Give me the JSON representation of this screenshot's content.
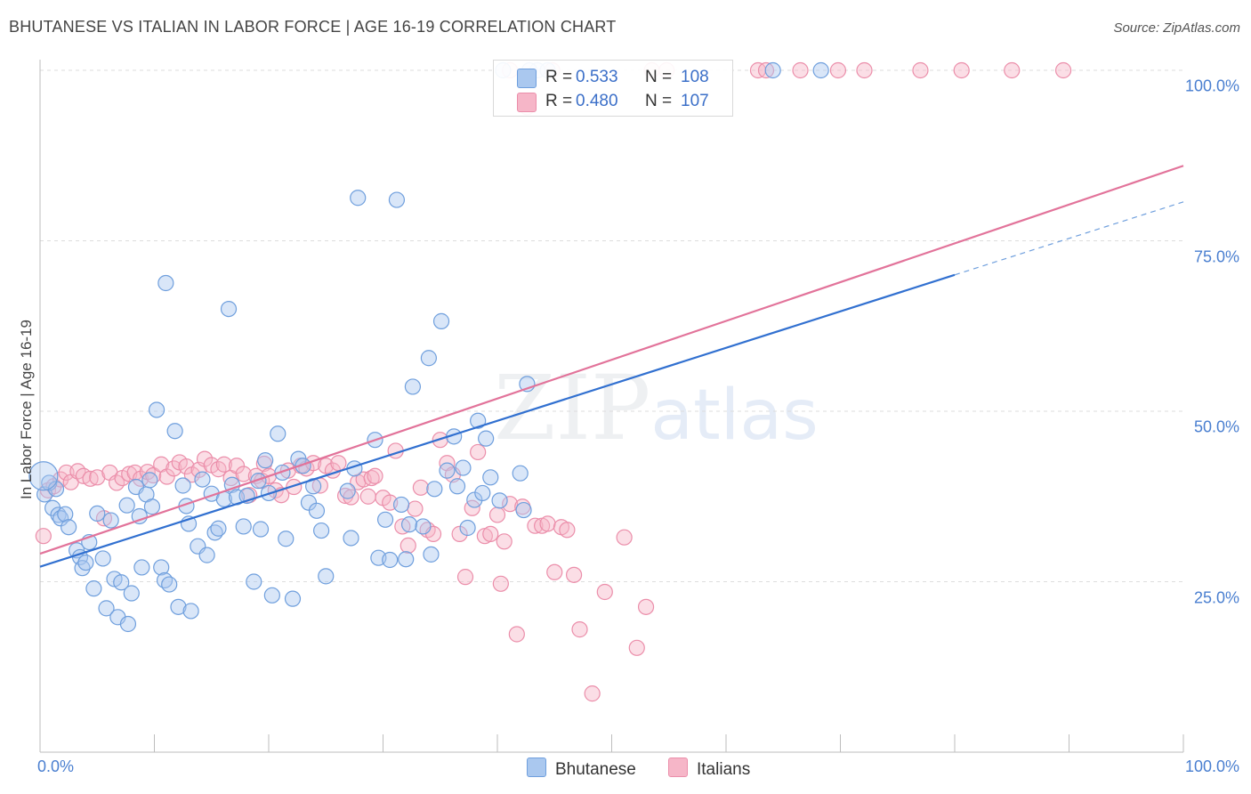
{
  "header": {
    "title": "BHUTANESE VS ITALIAN IN LABOR FORCE | AGE 16-19 CORRELATION CHART",
    "source": "Source: ZipAtlas.com"
  },
  "watermark": {
    "zip": "ZIP",
    "atlas": "atlas"
  },
  "colors": {
    "blue_fill": "#aac8ef",
    "blue_stroke": "#6f9fdd",
    "blue_line": "#3170d0",
    "pink_fill": "#f6b6c8",
    "pink_stroke": "#eb8eaa",
    "pink_line": "#e2739a",
    "tick_text": "#4a7fd0"
  },
  "stats": [
    {
      "r_label": "R =",
      "r_value": "0.533",
      "n_label": "N =",
      "n_value": "108"
    },
    {
      "r_label": "R =",
      "r_value": "0.480",
      "n_label": "N =",
      "n_value": "107"
    }
  ],
  "legend": [
    {
      "label": "Bhutanese"
    },
    {
      "label": "Italians"
    }
  ],
  "chart_data": {
    "type": "scatter",
    "ylabel": "In Labor Force | Age 16-19",
    "xlim": [
      0,
      100
    ],
    "ylim": [
      0,
      100
    ],
    "grid": true,
    "legend_position": "bottom-center",
    "x_tick_labels": [
      "0.0%",
      "100.0%"
    ],
    "y_tick_labels": [
      "25.0%",
      "50.0%",
      "75.0%",
      "100.0%"
    ],
    "y_ticks": [
      25,
      50,
      75,
      100
    ],
    "series": [
      {
        "name": "Bhutanese",
        "color": "#aac8ef",
        "trend": {
          "x0": 0,
          "y0": 27.2,
          "x1": 80,
          "y1": 70,
          "dash_to": 100,
          "dash_y": 80.7
        },
        "points": [
          [
            0.4,
            37.8
          ],
          [
            0.8,
            39.5
          ],
          [
            1.1,
            35.8
          ],
          [
            1.4,
            38.6
          ],
          [
            1.6,
            34.8
          ],
          [
            1.8,
            34.3
          ],
          [
            2.2,
            34.9
          ],
          [
            2.5,
            33.0
          ],
          [
            3.2,
            29.6
          ],
          [
            3.5,
            28.6
          ],
          [
            3.7,
            27.0
          ],
          [
            4.0,
            27.8
          ],
          [
            4.3,
            30.8
          ],
          [
            4.7,
            24.0
          ],
          [
            5.0,
            35.0
          ],
          [
            5.5,
            28.4
          ],
          [
            5.8,
            21.1
          ],
          [
            6.2,
            34.0
          ],
          [
            6.5,
            25.4
          ],
          [
            6.8,
            19.8
          ],
          [
            7.1,
            24.9
          ],
          [
            7.6,
            36.2
          ],
          [
            7.7,
            18.8
          ],
          [
            8.0,
            23.3
          ],
          [
            8.4,
            38.9
          ],
          [
            8.7,
            34.6
          ],
          [
            8.9,
            27.1
          ],
          [
            9.3,
            37.8
          ],
          [
            9.6,
            39.9
          ],
          [
            9.8,
            36.0
          ],
          [
            10.2,
            50.2
          ],
          [
            10.6,
            27.1
          ],
          [
            10.9,
            25.2
          ],
          [
            11.0,
            68.8
          ],
          [
            11.3,
            24.6
          ],
          [
            11.8,
            47.1
          ],
          [
            12.1,
            21.3
          ],
          [
            12.5,
            39.1
          ],
          [
            12.8,
            36.1
          ],
          [
            13.0,
            33.5
          ],
          [
            13.2,
            20.7
          ],
          [
            13.8,
            30.2
          ],
          [
            14.2,
            40.0
          ],
          [
            14.6,
            28.9
          ],
          [
            15.0,
            37.9
          ],
          [
            15.3,
            32.2
          ],
          [
            15.6,
            32.8
          ],
          [
            16.1,
            37.1
          ],
          [
            16.5,
            65.0
          ],
          [
            16.8,
            39.2
          ],
          [
            17.2,
            37.4
          ],
          [
            17.8,
            33.1
          ],
          [
            18.1,
            37.6
          ],
          [
            18.7,
            25.0
          ],
          [
            19.1,
            39.8
          ],
          [
            19.3,
            32.7
          ],
          [
            19.7,
            42.8
          ],
          [
            20.0,
            38.0
          ],
          [
            20.3,
            23.0
          ],
          [
            20.8,
            46.7
          ],
          [
            21.2,
            41.0
          ],
          [
            21.5,
            31.3
          ],
          [
            22.1,
            22.5
          ],
          [
            22.6,
            43.0
          ],
          [
            23.0,
            42.0
          ],
          [
            23.5,
            36.6
          ],
          [
            23.9,
            39.0
          ],
          [
            24.2,
            35.4
          ],
          [
            24.6,
            32.5
          ],
          [
            25.0,
            25.8
          ],
          [
            26.9,
            38.3
          ],
          [
            27.2,
            31.4
          ],
          [
            27.5,
            41.6
          ],
          [
            27.8,
            81.3
          ],
          [
            29.3,
            45.8
          ],
          [
            29.6,
            28.5
          ],
          [
            30.2,
            34.1
          ],
          [
            30.6,
            28.2
          ],
          [
            31.2,
            81.0
          ],
          [
            31.6,
            36.3
          ],
          [
            32.0,
            28.3
          ],
          [
            32.3,
            33.4
          ],
          [
            32.6,
            53.6
          ],
          [
            33.5,
            33.1
          ],
          [
            34.0,
            57.8
          ],
          [
            34.2,
            29.0
          ],
          [
            34.5,
            38.6
          ],
          [
            35.1,
            63.2
          ],
          [
            35.6,
            41.3
          ],
          [
            36.2,
            46.3
          ],
          [
            36.5,
            39.0
          ],
          [
            37.0,
            41.7
          ],
          [
            37.4,
            32.9
          ],
          [
            38.0,
            37.0
          ],
          [
            38.3,
            48.6
          ],
          [
            38.7,
            38.0
          ],
          [
            39.0,
            46.0
          ],
          [
            39.4,
            40.3
          ],
          [
            40.2,
            36.9
          ],
          [
            42.0,
            40.9
          ],
          [
            42.3,
            35.5
          ],
          [
            42.6,
            54.0
          ],
          [
            64.1,
            100.0
          ],
          [
            68.3,
            100.0
          ],
          [
            43.5,
            100.0
          ],
          [
            42.8,
            100.0
          ],
          [
            40.5,
            100.0
          ],
          [
            44.4,
            100.0
          ]
        ]
      },
      {
        "name": "Italians",
        "color": "#f6b6c8",
        "trend": {
          "x0": 0,
          "y0": 29.1,
          "x1": 100,
          "y1": 86.0
        },
        "points": [
          [
            0.3,
            31.7
          ],
          [
            0.7,
            38.4
          ],
          [
            1.2,
            39.0
          ],
          [
            1.8,
            40.0
          ],
          [
            2.3,
            41.0
          ],
          [
            2.7,
            39.6
          ],
          [
            3.3,
            41.2
          ],
          [
            3.8,
            40.5
          ],
          [
            4.4,
            40.1
          ],
          [
            5.0,
            40.3
          ],
          [
            5.6,
            34.3
          ],
          [
            6.1,
            41.0
          ],
          [
            6.7,
            39.5
          ],
          [
            7.2,
            40.2
          ],
          [
            7.8,
            40.8
          ],
          [
            8.3,
            41.0
          ],
          [
            8.8,
            40.1
          ],
          [
            9.4,
            41.1
          ],
          [
            9.9,
            40.6
          ],
          [
            10.6,
            42.2
          ],
          [
            11.1,
            40.4
          ],
          [
            11.7,
            41.6
          ],
          [
            12.2,
            42.5
          ],
          [
            12.8,
            41.9
          ],
          [
            13.3,
            40.7
          ],
          [
            13.9,
            41.4
          ],
          [
            14.4,
            43.0
          ],
          [
            15.0,
            42.1
          ],
          [
            15.6,
            41.5
          ],
          [
            16.1,
            42.2
          ],
          [
            16.7,
            40.2
          ],
          [
            17.2,
            42.0
          ],
          [
            17.8,
            40.8
          ],
          [
            18.3,
            37.7
          ],
          [
            18.9,
            40.5
          ],
          [
            19.4,
            39.8
          ],
          [
            19.6,
            42.3
          ],
          [
            20.0,
            40.5
          ],
          [
            20.6,
            38.4
          ],
          [
            21.1,
            37.7
          ],
          [
            21.7,
            41.3
          ],
          [
            22.2,
            38.9
          ],
          [
            22.8,
            42.0
          ],
          [
            23.3,
            41.6
          ],
          [
            23.9,
            42.4
          ],
          [
            24.5,
            39.1
          ],
          [
            25.0,
            42.0
          ],
          [
            25.6,
            41.3
          ],
          [
            26.1,
            42.4
          ],
          [
            26.7,
            37.6
          ],
          [
            27.2,
            37.4
          ],
          [
            27.8,
            39.6
          ],
          [
            28.3,
            40.0
          ],
          [
            28.7,
            37.5
          ],
          [
            29.0,
            40.2
          ],
          [
            29.3,
            40.5
          ],
          [
            30.0,
            37.3
          ],
          [
            30.6,
            36.6
          ],
          [
            31.1,
            44.2
          ],
          [
            31.7,
            33.1
          ],
          [
            32.2,
            30.3
          ],
          [
            32.8,
            35.7
          ],
          [
            33.3,
            38.8
          ],
          [
            33.9,
            32.6
          ],
          [
            34.4,
            32.0
          ],
          [
            35.0,
            45.8
          ],
          [
            35.6,
            42.4
          ],
          [
            36.1,
            40.7
          ],
          [
            36.7,
            32.0
          ],
          [
            37.2,
            25.7
          ],
          [
            37.8,
            35.8
          ],
          [
            38.3,
            44.0
          ],
          [
            38.9,
            31.7
          ],
          [
            39.4,
            32.0
          ],
          [
            40.0,
            34.8
          ],
          [
            40.3,
            24.7
          ],
          [
            40.6,
            30.9
          ],
          [
            41.1,
            36.4
          ],
          [
            41.7,
            17.3
          ],
          [
            42.2,
            36.0
          ],
          [
            42.6,
            94.6
          ],
          [
            43.3,
            33.2
          ],
          [
            43.9,
            33.2
          ],
          [
            44.4,
            33.5
          ],
          [
            45.0,
            26.4
          ],
          [
            45.6,
            33.0
          ],
          [
            46.1,
            32.6
          ],
          [
            46.7,
            26.0
          ],
          [
            47.2,
            18.0
          ],
          [
            48.3,
            8.6
          ],
          [
            49.4,
            23.5
          ],
          [
            51.1,
            31.5
          ],
          [
            53.0,
            21.3
          ],
          [
            52.2,
            15.3
          ],
          [
            53.5,
            100.0
          ],
          [
            54.8,
            100.0
          ],
          [
            62.8,
            100.0
          ],
          [
            63.5,
            100.0
          ],
          [
            66.5,
            100.0
          ],
          [
            69.8,
            100.0
          ],
          [
            72.1,
            100.0
          ],
          [
            77.0,
            100.0
          ],
          [
            80.6,
            100.0
          ],
          [
            85.0,
            100.0
          ],
          [
            89.5,
            100.0
          ],
          [
            41.1,
            100.0
          ],
          [
            44.8,
            100.0
          ]
        ]
      }
    ]
  }
}
